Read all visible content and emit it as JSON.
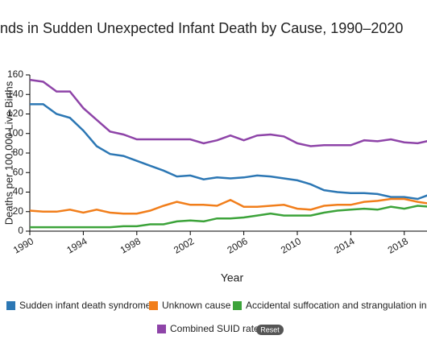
{
  "chart_data": {
    "type": "line",
    "title": "nds in Sudden Unexpected Infant Death by Cause, 1990–2020",
    "x_label": "Year",
    "y_label": "Deaths per 100,000 Live Births",
    "x": [
      1990,
      1991,
      1992,
      1993,
      1994,
      1995,
      1996,
      1997,
      1998,
      1999,
      2000,
      2001,
      2002,
      2003,
      2004,
      2005,
      2006,
      2007,
      2008,
      2009,
      2010,
      2011,
      2012,
      2013,
      2014,
      2015,
      2016,
      2017,
      2018,
      2019,
      2020
    ],
    "series": [
      {
        "name": "Sudden infant death syndrome",
        "color": "#2c77b4",
        "values": [
          130,
          130,
          120,
          116,
          103,
          87,
          79,
          77,
          72,
          67,
          62,
          56,
          57,
          53,
          55,
          54,
          55,
          57,
          56,
          54,
          52,
          48,
          42,
          40,
          39,
          39,
          38,
          35,
          35,
          33,
          38
        ]
      },
      {
        "name": "Unknown cause",
        "color": "#f17e1b",
        "values": [
          21,
          20,
          20,
          22,
          19,
          22,
          19,
          18,
          18,
          21,
          26,
          30,
          27,
          27,
          26,
          32,
          25,
          25,
          26,
          27,
          23,
          22,
          26,
          27,
          27,
          30,
          31,
          33,
          33,
          30,
          28
        ]
      },
      {
        "name": "Accidental suffocation and strangulation in bed",
        "color": "#3ca33a",
        "values": [
          4,
          4,
          4,
          4,
          4,
          4,
          4,
          5,
          5,
          7,
          7,
          10,
          11,
          10,
          13,
          13,
          14,
          16,
          18,
          16,
          16,
          16,
          19,
          21,
          22,
          23,
          22,
          25,
          23,
          26,
          25
        ]
      },
      {
        "name": "Combined SUID rate",
        "color": "#8e44a8",
        "values": [
          155,
          153,
          143,
          143,
          126,
          114,
          102,
          99,
          94,
          94,
          94,
          94,
          94,
          90,
          93,
          98,
          93,
          98,
          99,
          97,
          90,
          87,
          88,
          88,
          88,
          93,
          92,
          94,
          91,
          90,
          93
        ]
      }
    ],
    "xlim": [
      1990,
      2020
    ],
    "xticks": [
      1990,
      1994,
      1998,
      2002,
      2006,
      2010,
      2014,
      2018
    ],
    "ylim": [
      0,
      160
    ],
    "yticks": [
      0,
      20,
      40,
      60,
      80,
      100,
      120,
      140,
      160
    ],
    "reset_button": "Reset"
  }
}
